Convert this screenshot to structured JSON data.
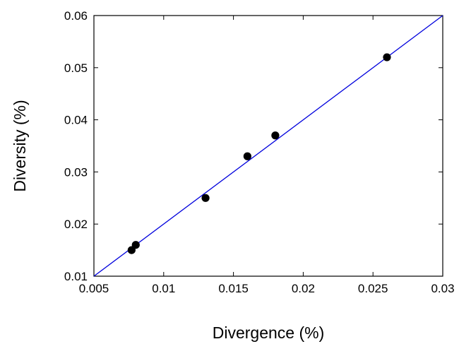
{
  "chart_data": {
    "type": "scatter",
    "title": "",
    "xlabel": "Divergence (%)",
    "ylabel": "Diversity (%)",
    "xlim": [
      0.005,
      0.03
    ],
    "ylim": [
      0.01,
      0.06
    ],
    "xticks": [
      0.005,
      0.01,
      0.015,
      0.02,
      0.025,
      0.03
    ],
    "xtick_labels": [
      "0.005",
      "0.01",
      "0.015",
      "0.02",
      "0.025",
      "0.03"
    ],
    "yticks": [
      0.01,
      0.02,
      0.03,
      0.04,
      0.05,
      0.06
    ],
    "ytick_labels": [
      "0.01",
      "0.02",
      "0.03",
      "0.04",
      "0.05",
      "0.06"
    ],
    "grid": false,
    "series": [
      {
        "type": "scatter",
        "color": "#000000",
        "points": [
          {
            "x": 0.0077,
            "y": 0.015
          },
          {
            "x": 0.008,
            "y": 0.016
          },
          {
            "x": 0.013,
            "y": 0.025
          },
          {
            "x": 0.016,
            "y": 0.033
          },
          {
            "x": 0.018,
            "y": 0.037
          },
          {
            "x": 0.026,
            "y": 0.052
          }
        ]
      },
      {
        "type": "line",
        "color": "#0000dd",
        "points": [
          {
            "x": 0.005,
            "y": 0.01
          },
          {
            "x": 0.03,
            "y": 0.06
          }
        ]
      }
    ]
  }
}
